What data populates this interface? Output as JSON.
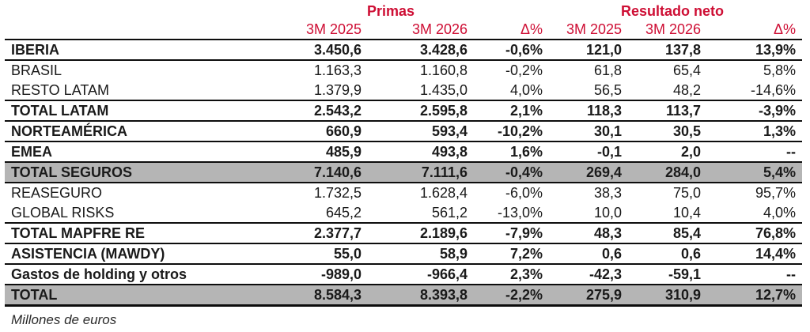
{
  "colors": {
    "accent_red": "#ce0e34",
    "shaded_row_bg": "#b5b5b5",
    "text": "#1a1a1a",
    "border": "#0d0d0d"
  },
  "table": {
    "group_headers": {
      "primas": "Primas",
      "resultado": "Resultado neto"
    },
    "column_headers": [
      "3M 2025",
      "3M 2026",
      "Δ%",
      "3M 2025",
      "3M 2026",
      "Δ%"
    ],
    "rows": [
      {
        "label": "IBERIA",
        "bold": true,
        "shaded": false,
        "line_below": true,
        "thick_bottom": false,
        "values": [
          "3.450,6",
          "3.428,6",
          "-0,6%",
          "121,0",
          "137,8",
          "13,9%"
        ]
      },
      {
        "label": "BRASIL",
        "bold": false,
        "shaded": false,
        "line_below": false,
        "thick_bottom": false,
        "values": [
          "1.163,3",
          "1.160,8",
          "-0,2%",
          "61,8",
          "65,4",
          "5,8%"
        ]
      },
      {
        "label": "RESTO LATAM",
        "bold": false,
        "shaded": false,
        "line_below": true,
        "thick_bottom": false,
        "values": [
          "1.379,9",
          "1.435,0",
          "4,0%",
          "56,5",
          "48,2",
          "-14,6%"
        ]
      },
      {
        "label": "TOTAL LATAM",
        "bold": true,
        "shaded": false,
        "line_below": true,
        "thick_bottom": false,
        "values": [
          "2.543,2",
          "2.595,8",
          "2,1%",
          "118,3",
          "113,7",
          "-3,9%"
        ]
      },
      {
        "label": "NORTEAMÉRICA",
        "bold": true,
        "shaded": false,
        "line_below": true,
        "thick_bottom": false,
        "values": [
          "660,9",
          "593,4",
          "-10,2%",
          "30,1",
          "30,5",
          "1,3%"
        ]
      },
      {
        "label": "EMEA",
        "bold": true,
        "shaded": false,
        "line_below": true,
        "thick_bottom": false,
        "values": [
          "485,9",
          "493,8",
          "1,6%",
          "-0,1",
          "2,0",
          "--"
        ]
      },
      {
        "label": "TOTAL SEGUROS",
        "bold": true,
        "shaded": true,
        "line_below": true,
        "thick_bottom": false,
        "values": [
          "7.140,6",
          "7.111,6",
          "-0,4%",
          "269,4",
          "284,0",
          "5,4%"
        ]
      },
      {
        "label": "REASEGURO",
        "bold": false,
        "shaded": false,
        "line_below": false,
        "thick_bottom": false,
        "values": [
          "1.732,5",
          "1.628,4",
          "-6,0%",
          "38,3",
          "75,0",
          "95,7%"
        ]
      },
      {
        "label": "GLOBAL RISKS",
        "bold": false,
        "shaded": false,
        "line_below": true,
        "thick_bottom": false,
        "values": [
          "645,2",
          "561,2",
          "-13,0%",
          "10,0",
          "10,4",
          "4,0%"
        ]
      },
      {
        "label": "TOTAL MAPFRE RE",
        "bold": true,
        "shaded": false,
        "line_below": true,
        "thick_bottom": false,
        "values": [
          "2.377,7",
          "2.189,6",
          "-7,9%",
          "48,3",
          "85,4",
          "76,8%"
        ]
      },
      {
        "label": "ASISTENCIA (MAWDY)",
        "bold": true,
        "shaded": false,
        "line_below": true,
        "thick_bottom": false,
        "values": [
          "55,0",
          "58,9",
          "7,2%",
          "0,6",
          "0,6",
          "14,4%"
        ]
      },
      {
        "label": "Gastos de holding y otros",
        "bold": true,
        "shaded": false,
        "line_below": true,
        "thick_bottom": false,
        "values": [
          "-989,0",
          "-966,4",
          "2,3%",
          "-42,3",
          "-59,1",
          "--"
        ]
      },
      {
        "label": "TOTAL",
        "bold": true,
        "shaded": true,
        "line_below": false,
        "thick_bottom": true,
        "values": [
          "8.584,3",
          "8.393,8",
          "-2,2%",
          "275,9",
          "310,9",
          "12,7%"
        ]
      }
    ],
    "footnote": "Millones de euros"
  },
  "chart_data": {
    "type": "table",
    "title": "",
    "units": "Millones de euros",
    "column_groups": [
      {
        "name": "Primas",
        "columns": [
          "3M 2025",
          "3M 2026",
          "Δ%"
        ]
      },
      {
        "name": "Resultado neto",
        "columns": [
          "3M 2025",
          "3M 2026",
          "Δ%"
        ]
      }
    ],
    "columns": [
      "Primas 3M 2025",
      "Primas 3M 2026",
      "Primas Δ%",
      "Resultado neto 3M 2025",
      "Resultado neto 3M 2026",
      "Resultado neto Δ%"
    ],
    "rows": [
      {
        "label": "IBERIA",
        "values": [
          3450.6,
          3428.6,
          -0.6,
          121.0,
          137.8,
          13.9
        ]
      },
      {
        "label": "BRASIL",
        "values": [
          1163.3,
          1160.8,
          -0.2,
          61.8,
          65.4,
          5.8
        ]
      },
      {
        "label": "RESTO LATAM",
        "values": [
          1379.9,
          1435.0,
          4.0,
          56.5,
          48.2,
          -14.6
        ]
      },
      {
        "label": "TOTAL LATAM",
        "values": [
          2543.2,
          2595.8,
          2.1,
          118.3,
          113.7,
          -3.9
        ]
      },
      {
        "label": "NORTEAMÉRICA",
        "values": [
          660.9,
          593.4,
          -10.2,
          30.1,
          30.5,
          1.3
        ]
      },
      {
        "label": "EMEA",
        "values": [
          485.9,
          493.8,
          1.6,
          -0.1,
          2.0,
          null
        ]
      },
      {
        "label": "TOTAL SEGUROS",
        "values": [
          7140.6,
          7111.6,
          -0.4,
          269.4,
          284.0,
          5.4
        ]
      },
      {
        "label": "REASEGURO",
        "values": [
          1732.5,
          1628.4,
          -6.0,
          38.3,
          75.0,
          95.7
        ]
      },
      {
        "label": "GLOBAL RISKS",
        "values": [
          645.2,
          561.2,
          -13.0,
          10.0,
          10.4,
          4.0
        ]
      },
      {
        "label": "TOTAL MAPFRE RE",
        "values": [
          2377.7,
          2189.6,
          -7.9,
          48.3,
          85.4,
          76.8
        ]
      },
      {
        "label": "ASISTENCIA (MAWDY)",
        "values": [
          55.0,
          58.9,
          7.2,
          0.6,
          0.6,
          14.4
        ]
      },
      {
        "label": "Gastos de holding y otros",
        "values": [
          -989.0,
          -966.4,
          2.3,
          -42.3,
          -59.1,
          null
        ]
      },
      {
        "label": "TOTAL",
        "values": [
          8584.3,
          8393.8,
          -2.2,
          275.9,
          310.9,
          12.7
        ]
      }
    ]
  }
}
